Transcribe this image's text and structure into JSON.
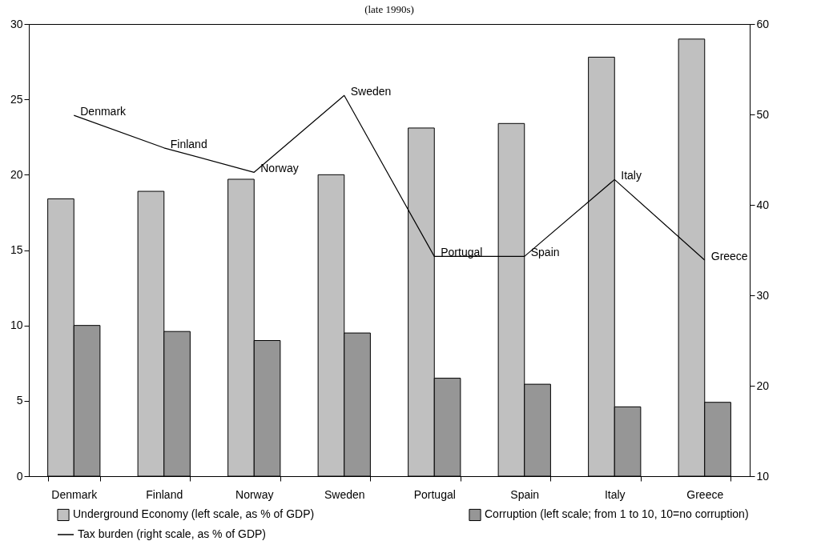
{
  "chart_data": {
    "type": "bar",
    "title": "(late 1990s)",
    "categories": [
      "Denmark",
      "Finland",
      "Norway",
      "Sweden",
      "Portugal",
      "Spain",
      "Italy",
      "Greece"
    ],
    "series": [
      {
        "name": "Underground Economy (left scale, as % of GDP)",
        "color": "#c0c0c0",
        "values": [
          18.4,
          18.9,
          19.7,
          20.0,
          23.1,
          23.4,
          27.8,
          29.0
        ]
      },
      {
        "name": "Corruption  (left scale; from 1 to 10, 10=no corruption)",
        "color": "#969696",
        "values": [
          10.0,
          9.6,
          9.0,
          9.5,
          6.5,
          6.1,
          4.6,
          4.9
        ]
      },
      {
        "name": "Tax burden (right scale, as % of GDP)",
        "type": "line",
        "axis": "y2",
        "color": "#000000",
        "values": [
          49.9,
          46.3,
          43.6,
          52.1,
          34.3,
          34.3,
          42.8,
          33.9
        ],
        "value_labels": [
          "Denmark",
          "Finland",
          "Norway",
          "Sweden",
          "Portugal",
          "Spain",
          "Italy",
          "Greece"
        ]
      }
    ],
    "ylim": [
      0,
      30
    ],
    "yticks": [
      0,
      5,
      10,
      15,
      20,
      25,
      30
    ],
    "y2lim": [
      10,
      60
    ],
    "y2ticks": [
      10,
      20,
      30,
      40,
      50,
      60
    ],
    "grid": false,
    "legend": "bottom"
  }
}
